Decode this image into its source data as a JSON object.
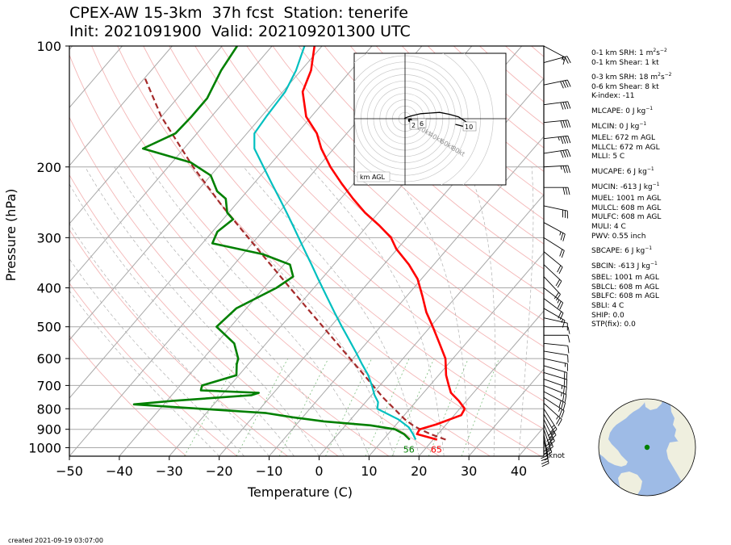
{
  "title_line1": "CPEX-AW 15-3km  37h fcst  Station: tenerife",
  "title_line2": "Init: 2021091900  Valid: 202109201300 UTC",
  "created": "created 2021-09-19 03:07:00",
  "knot_label": "knot",
  "chart_data": {
    "type": "line",
    "subtype": "skew-T log-P",
    "title": "CPEX-AW 15-3km  37h fcst  Station: tenerife",
    "xlabel": "Temperature (C)",
    "ylabel": "Pressure (hPa)",
    "xlim": [
      -50,
      45
    ],
    "ylim": [
      1050,
      100
    ],
    "yscale": "log",
    "xticks": [
      -50,
      -40,
      -30,
      -20,
      -10,
      0,
      10,
      20,
      30,
      40
    ],
    "xtick_labels": [
      "−50",
      "−40",
      "−30",
      "−20",
      "−10",
      "0",
      "10",
      "20",
      "30",
      "40"
    ],
    "yticks": [
      100,
      200,
      300,
      400,
      500,
      600,
      700,
      800,
      900,
      1000
    ],
    "grid": true,
    "colors": {
      "temperature": "#ff0000",
      "dewpoint": "#008000",
      "wetbulb": "#00bfbf",
      "parcel": "#a52a2a"
    },
    "surface_labels": {
      "dewpoint": "56",
      "temperature": "65"
    },
    "series": [
      {
        "key": "temperature",
        "points": [
          [
            955,
            20.8
          ],
          [
            925,
            15.8
          ],
          [
            900,
            15.5
          ],
          [
            875,
            18.0
          ],
          [
            830,
            21.4
          ],
          [
            800,
            21.0
          ],
          [
            765,
            18.5
          ],
          [
            730,
            15.5
          ],
          [
            700,
            13.8
          ],
          [
            660,
            11.5
          ],
          [
            600,
            8.5
          ],
          [
            550,
            4.7
          ],
          [
            500,
            0.5
          ],
          [
            460,
            -3.3
          ],
          [
            420,
            -6.8
          ],
          [
            380,
            -10.8
          ],
          [
            350,
            -15.0
          ],
          [
            320,
            -20.2
          ],
          [
            300,
            -23.2
          ],
          [
            280,
            -27.6
          ],
          [
            260,
            -32.7
          ],
          [
            240,
            -37.5
          ],
          [
            220,
            -42.4
          ],
          [
            200,
            -47.5
          ],
          [
            180,
            -52.5
          ],
          [
            165,
            -56.0
          ],
          [
            150,
            -61.0
          ],
          [
            130,
            -66.0
          ],
          [
            115,
            -68.0
          ],
          [
            100,
            -71.5
          ]
        ]
      },
      {
        "key": "dewpoint",
        "points": [
          [
            955,
            15.3
          ],
          [
            925,
            13.2
          ],
          [
            900,
            10.6
          ],
          [
            880,
            5.0
          ],
          [
            860,
            -5.0
          ],
          [
            840,
            -12.0
          ],
          [
            820,
            -18.0
          ],
          [
            800,
            -31.8
          ],
          [
            780,
            -46.0
          ],
          [
            765,
            -39.0
          ],
          [
            740,
            -24.0
          ],
          [
            730,
            -23.0
          ],
          [
            720,
            -35.0
          ],
          [
            700,
            -35.6
          ],
          [
            660,
            -30.5
          ],
          [
            620,
            -32.3
          ],
          [
            600,
            -33.0
          ],
          [
            550,
            -36.4
          ],
          [
            500,
            -42.8
          ],
          [
            450,
            -42.0
          ],
          [
            400,
            -37.5
          ],
          [
            375,
            -36.1
          ],
          [
            350,
            -38.8
          ],
          [
            330,
            -46.0
          ],
          [
            310,
            -58.0
          ],
          [
            290,
            -59.0
          ],
          [
            270,
            -58.0
          ],
          [
            260,
            -60.3
          ],
          [
            240,
            -63.0
          ],
          [
            230,
            -66.0
          ],
          [
            210,
            -70.0
          ],
          [
            195,
            -76.2
          ],
          [
            180,
            -88.2
          ],
          [
            165,
            -84.3
          ],
          [
            150,
            -84.0
          ],
          [
            135,
            -84.0
          ],
          [
            115,
            -86.0
          ],
          [
            100,
            -87.0
          ]
        ]
      },
      {
        "key": "wetbulb",
        "points": [
          [
            955,
            16.5
          ],
          [
            925,
            15.0
          ],
          [
            890,
            13.0
          ],
          [
            850,
            9.5
          ],
          [
            800,
            3.5
          ],
          [
            770,
            2.5
          ],
          [
            740,
            0.6
          ],
          [
            700,
            -1.6
          ],
          [
            660,
            -4.1
          ],
          [
            620,
            -7.2
          ],
          [
            580,
            -10.4
          ],
          [
            540,
            -13.9
          ],
          [
            500,
            -17.7
          ],
          [
            460,
            -21.7
          ],
          [
            420,
            -26.0
          ],
          [
            380,
            -30.7
          ],
          [
            350,
            -34.5
          ],
          [
            320,
            -38.7
          ],
          [
            300,
            -41.7
          ],
          [
            280,
            -44.9
          ],
          [
            260,
            -48.4
          ],
          [
            240,
            -52.2
          ],
          [
            220,
            -56.4
          ],
          [
            200,
            -60.9
          ],
          [
            180,
            -65.9
          ],
          [
            165,
            -68.5
          ],
          [
            150,
            -69.0
          ],
          [
            130,
            -69.5
          ],
          [
            115,
            -71.0
          ],
          [
            100,
            -73.5
          ]
        ]
      },
      {
        "key": "parcel",
        "points": [
          [
            955,
            22.5
          ],
          [
            925,
            18.5
          ],
          [
            900,
            15.6
          ],
          [
            880,
            13.5
          ],
          [
            850,
            10.8
          ],
          [
            800,
            6.9
          ],
          [
            750,
            2.7
          ],
          [
            700,
            -1.4
          ],
          [
            650,
            -5.8
          ],
          [
            600,
            -10.6
          ],
          [
            550,
            -15.8
          ],
          [
            500,
            -21.5
          ],
          [
            450,
            -27.8
          ],
          [
            400,
            -34.8
          ],
          [
            350,
            -42.7
          ],
          [
            300,
            -51.8
          ],
          [
            250,
            -62.5
          ],
          [
            200,
            -75.0
          ],
          [
            150,
            -90.0
          ],
          [
            120,
            -100.0
          ]
        ]
      }
    ],
    "barbs_kt": [
      {
        "p": 955,
        "u": -5,
        "v": 24
      },
      {
        "p": 925,
        "u": -5,
        "v": 27
      },
      {
        "p": 900,
        "u": -10,
        "v": 29
      },
      {
        "p": 875,
        "u": -12,
        "v": 29
      },
      {
        "p": 850,
        "u": -13,
        "v": 26
      },
      {
        "p": 825,
        "u": -14,
        "v": 24
      },
      {
        "p": 800,
        "u": -14,
        "v": 22
      },
      {
        "p": 775,
        "u": -20,
        "v": 18
      },
      {
        "p": 750,
        "u": -23,
        "v": 15
      },
      {
        "p": 725,
        "u": -25,
        "v": 13
      },
      {
        "p": 700,
        "u": -25,
        "v": 10
      },
      {
        "p": 675,
        "u": -23,
        "v": 8
      },
      {
        "p": 650,
        "u": -20,
        "v": 6
      },
      {
        "p": 625,
        "u": -17,
        "v": 5
      },
      {
        "p": 600,
        "u": -14,
        "v": 3
      },
      {
        "p": 575,
        "u": -12,
        "v": 2
      },
      {
        "p": 550,
        "u": -10,
        "v": 1
      },
      {
        "p": 525,
        "u": -9,
        "v": 0
      },
      {
        "p": 500,
        "u": -8,
        "v": 0
      },
      {
        "p": 475,
        "u": -9,
        "v": 2
      },
      {
        "p": 450,
        "u": -14,
        "v": 8
      },
      {
        "p": 425,
        "u": -16,
        "v": 12
      },
      {
        "p": 400,
        "u": -18,
        "v": 14
      },
      {
        "p": 375,
        "u": -15,
        "v": 16
      },
      {
        "p": 350,
        "u": -16,
        "v": 15
      },
      {
        "p": 325,
        "u": -17,
        "v": 14
      },
      {
        "p": 300,
        "u": -19,
        "v": 12
      },
      {
        "p": 275,
        "u": -22,
        "v": 12
      },
      {
        "p": 250,
        "u": -28,
        "v": 6
      },
      {
        "p": 225,
        "u": -32,
        "v": 0
      },
      {
        "p": 200,
        "u": -35,
        "v": -2
      },
      {
        "p": 185,
        "u": -40,
        "v": -6
      },
      {
        "p": 170,
        "u": -45,
        "v": -5
      },
      {
        "p": 155,
        "u": -42,
        "v": -4
      },
      {
        "p": 140,
        "u": -38,
        "v": -5
      },
      {
        "p": 125,
        "u": -38,
        "v": -8
      },
      {
        "p": 110,
        "u": -22,
        "v": -6
      },
      {
        "p": 100,
        "u": -15,
        "v": 8
      }
    ],
    "hodograph": {
      "label": "km AGL",
      "ring_labels": [
        "20kt",
        "40kt",
        "60kt",
        "80kt"
      ],
      "height_labels": [
        "2",
        "6",
        "10"
      ],
      "points": [
        [
          -1,
          0
        ],
        [
          0,
          1
        ],
        [
          5,
          3
        ],
        [
          12,
          5
        ],
        [
          25,
          8
        ],
        [
          40,
          9
        ],
        [
          55,
          10
        ],
        [
          70,
          7
        ],
        [
          85,
          3
        ],
        [
          97,
          -5
        ],
        [
          92,
          -12
        ],
        [
          80,
          -9
        ]
      ]
    }
  },
  "indices": [
    {
      "label": "0-1 km SRH: 1 m",
      "sup": "2",
      "mid": "s",
      "sup2": "−2",
      "tail": ""
    },
    {
      "label": "0-1 km Shear: 1 kt"
    },
    {
      "label": "0-3 km SRH: 18 m",
      "sup": "2",
      "mid": "s",
      "sup2": "−2",
      "tail": "",
      "gap": true
    },
    {
      "label": "0-6 km Shear: 8 kt"
    },
    {
      "label": "K-index: -11"
    },
    {
      "label": "MLCAPE: 0 J kg",
      "sup": "−1",
      "gap": true
    },
    {
      "label": "MLCIN: 0 J kg",
      "sup": "−1",
      "gap": true
    },
    {
      "label": "MLEL: 672 m AGL",
      "gap": true
    },
    {
      "label": "MLLCL: 672 m AGL"
    },
    {
      "label": "MLLI: 5 C"
    },
    {
      "label": "MUCAPE: 6 J kg",
      "sup": "−1",
      "gap": true
    },
    {
      "label": "MUCIN: -613 J kg",
      "sup": "−1",
      "gap": true
    },
    {
      "label": "MUEL: 1001 m AGL",
      "gap": true
    },
    {
      "label": "MULCL: 608 m AGL"
    },
    {
      "label": "MULFC: 608 m AGL"
    },
    {
      "label": "MULI: 4 C"
    },
    {
      "label": "PWV: 0.55 inch"
    },
    {
      "label": "SBCAPE: 6 J kg",
      "sup": "−1",
      "gap": true
    },
    {
      "label": "SBCIN: -613 J kg",
      "sup": "−1",
      "gap": true
    },
    {
      "label": "SBEL: 1001 m AGL",
      "gap": true
    },
    {
      "label": "SBLCL: 608 m AGL"
    },
    {
      "label": "SBLFC: 608 m AGL"
    },
    {
      "label": "SBLI: 4 C"
    },
    {
      "label": "SHIP: 0.0"
    },
    {
      "label": "STP(fix): 0.0"
    }
  ],
  "globe": {
    "ocean": "#9ebbe6",
    "land": "#efefdf",
    "station_color": "#008000"
  }
}
